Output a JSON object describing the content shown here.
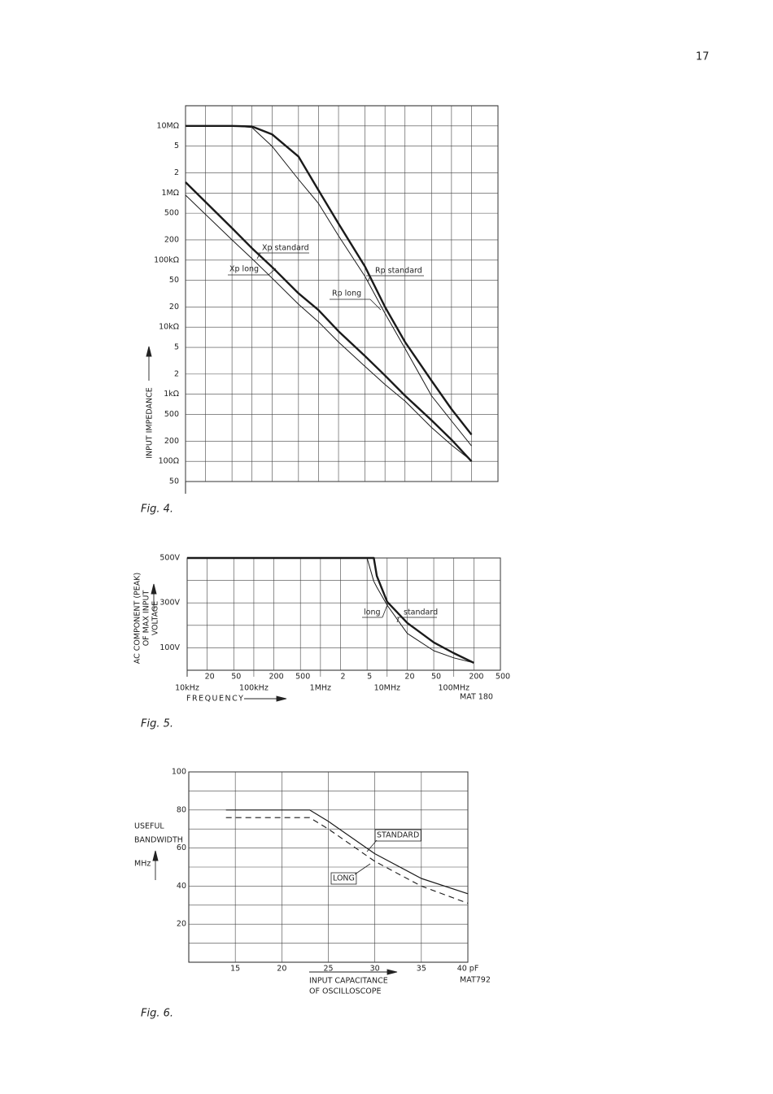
{
  "page_number": "17",
  "chart_data": [
    {
      "type": "line",
      "caption": "Fig. 4.",
      "ylabel": [
        "INPUT IMPEDANCE"
      ],
      "xscale": "log",
      "yscale": "log",
      "xlim": [
        10000,
        500000000
      ],
      "ylim": [
        50,
        20000000
      ],
      "grid": true,
      "show_xtick_labels": false,
      "xticks": [
        10000,
        20000,
        50000,
        100000,
        200000,
        500000,
        1000000,
        2000000,
        5000000,
        10000000,
        20000000,
        50000000,
        100000000,
        200000000,
        500000000
      ],
      "yticks": [
        {
          "value": 10000000,
          "label": "10MΩ"
        },
        {
          "value": 5000000,
          "label": "5"
        },
        {
          "value": 2000000,
          "label": "2"
        },
        {
          "value": 1000000,
          "label": "1MΩ"
        },
        {
          "value": 500000,
          "label": "500"
        },
        {
          "value": 200000,
          "label": "200"
        },
        {
          "value": 100000,
          "label": "100kΩ"
        },
        {
          "value": 50000,
          "label": "50"
        },
        {
          "value": 20000,
          "label": "20"
        },
        {
          "value": 10000,
          "label": "10kΩ"
        },
        {
          "value": 5000,
          "label": "5"
        },
        {
          "value": 2000,
          "label": "2"
        },
        {
          "value": 1000,
          "label": "1kΩ"
        },
        500,
        200,
        {
          "value": 100,
          "label": "100Ω"
        },
        50
      ],
      "x": [
        10000,
        50000,
        100000,
        200000,
        500000,
        1000000,
        2000000,
        5000000,
        10000000,
        20000000,
        50000000,
        100000000,
        200000000
      ],
      "series": [
        {
          "name": "Rp standard",
          "color": "#1a1a1a",
          "line_width": 2.4,
          "dash": false,
          "values": [
            10000000,
            10000000,
            9800000,
            7500000,
            3500000,
            1100000,
            350000,
            80000,
            20000,
            6000,
            1600,
            600,
            250
          ]
        },
        {
          "name": "Rp long",
          "color": "#1a1a1a",
          "line_width": 1,
          "dash": false,
          "values": [
            10000000,
            10000000,
            9500000,
            5000000,
            1600000,
            700000,
            230000,
            57000,
            16000,
            4800,
            950,
            400,
            170
          ]
        },
        {
          "name": "Xp standard",
          "color": "#1a1a1a",
          "line_width": 2.4,
          "dash": false,
          "values": [
            1450000,
            300000,
            150000,
            79000,
            32000,
            18000,
            8700,
            3700,
            1900,
            950,
            410,
            210,
            100
          ]
        },
        {
          "name": "Xp long",
          "color": "#1a1a1a",
          "line_width": 1,
          "dash": false,
          "values": [
            930000,
            200000,
            105000,
            54000,
            22000,
            12000,
            6000,
            2600,
            1400,
            790,
            320,
            175,
            102
          ]
        }
      ]
    },
    {
      "type": "line",
      "caption": "Fig. 5.",
      "ylabel": [
        "AC COMPONENT (PEAK)",
        "OF MAX INPUT",
        "VOLTAGE"
      ],
      "xlabel": [
        "FREQUENCY"
      ],
      "code": "MAT 180",
      "xscale": "log",
      "yscale": "linear",
      "xlim": [
        10000,
        500000000
      ],
      "ylim": [
        0,
        500
      ],
      "grid": true,
      "xticks": [
        {
          "value": 10000,
          "label": "10kHz"
        },
        {
          "value": 20000,
          "label": "20"
        },
        {
          "value": 50000,
          "label": "50"
        },
        {
          "value": 100000,
          "label": "100kHz"
        },
        {
          "value": 200000,
          "label": "200"
        },
        {
          "value": 500000,
          "label": "500"
        },
        {
          "value": 1000000,
          "label": "1MHz"
        },
        {
          "value": 2000000,
          "label": "2"
        },
        {
          "value": 5000000,
          "label": "5"
        },
        {
          "value": 10000000,
          "label": "10MHz"
        },
        {
          "value": 20000000,
          "label": "20"
        },
        {
          "value": 50000000,
          "label": "50"
        },
        {
          "value": 100000000,
          "label": "100MHz"
        },
        {
          "value": 200000000,
          "label": "200"
        },
        {
          "value": 500000000,
          "label": "500"
        }
      ],
      "yticks": [
        {
          "value": 100,
          "label": "100V"
        },
        {
          "value": 300,
          "label": "300V"
        },
        {
          "value": 500,
          "label": "500V"
        }
      ],
      "minor_yticks": [
        200,
        400
      ],
      "x": [
        10000,
        5000000,
        6300000,
        7000000,
        10000000,
        20000000,
        50000000,
        100000000,
        200000000
      ],
      "series": [
        {
          "name": "standard",
          "color": "#1a1a1a",
          "line_width": 2.4,
          "dash": false,
          "values": [
            500,
            500,
            500,
            420,
            305,
            211,
            124,
            76,
            33
          ]
        },
        {
          "name": "long",
          "color": "#1a1a1a",
          "line_width": 1,
          "dash": false,
          "values": [
            500,
            500,
            396,
            370,
            290,
            164,
            87,
            55,
            33
          ]
        }
      ]
    },
    {
      "type": "line",
      "caption": "Fig. 6.",
      "ylabel": [
        "USEFUL",
        "BANDWIDTH",
        "MHz"
      ],
      "xlabel": [
        "INPUT CAPACITANCE",
        "OF OSCILLOSCOPE"
      ],
      "code": "MAT792",
      "xscale": "linear",
      "yscale": "linear",
      "xlim": [
        10,
        40
      ],
      "ylim": [
        0,
        100
      ],
      "grid": true,
      "xticks": [
        15,
        20,
        25,
        30,
        35,
        {
          "value": 40,
          "label": "40 pF"
        }
      ],
      "yticks": [
        20,
        40,
        60,
        80,
        100
      ],
      "minor_yticks": [
        10,
        30,
        50,
        70,
        90
      ],
      "x": [
        14,
        23,
        25,
        30,
        35,
        40
      ],
      "series": [
        {
          "name": "STANDARD",
          "color": "#1a1a1a",
          "line_width": 1.2,
          "dash": false,
          "values": [
            80,
            80,
            74,
            57,
            44,
            36
          ]
        },
        {
          "name": "LONG",
          "color": "#1a1a1a",
          "line_width": 1.1,
          "dash": true,
          "values": [
            76,
            76,
            70,
            53,
            40,
            31
          ]
        }
      ]
    }
  ]
}
